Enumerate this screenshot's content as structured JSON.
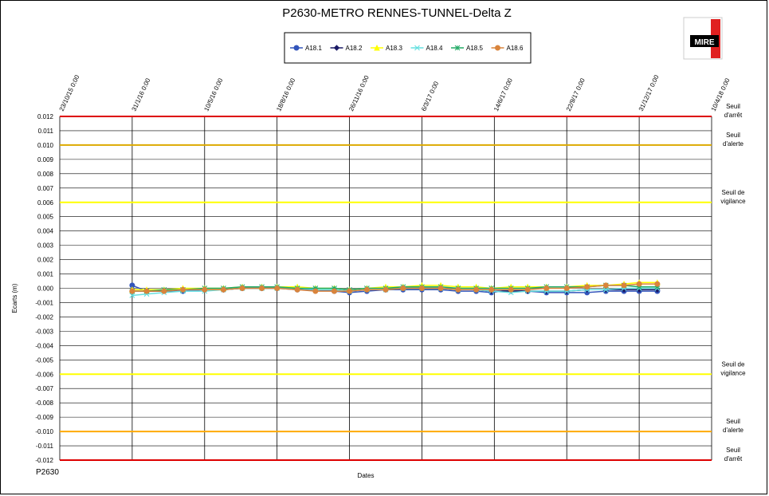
{
  "reference": "P2630",
  "logo": {
    "text": "MIRE",
    "colors": {
      "red": "#e02020",
      "black": "#000000"
    }
  },
  "chart_data": {
    "type": "line",
    "title": "P2630-METRO RENNES-TUNNEL-Delta Z",
    "xlabel": "Dates",
    "ylabel": "Ecarts (m)",
    "ylim": [
      -0.012,
      0.012
    ],
    "xlim": [
      "2015-10-23",
      "2018-04-10"
    ],
    "x_tick_labels": [
      "23/10/15 0:00",
      "31/1/16 0:00",
      "10/5/16 0:00",
      "18/8/16 0:00",
      "26/11/16 0:00",
      "6/3/17 0:00",
      "14/6/17 0:00",
      "22/9/17 0:00",
      "31/12/17 0:00",
      "10/4/18 0:00"
    ],
    "y_tick_labels": [
      "0.012",
      "0.011",
      "0.010",
      "0.009",
      "0.008",
      "0.007",
      "0.006",
      "0.005",
      "0.004",
      "0.003",
      "0.002",
      "0.001",
      "0.000",
      "-0.001",
      "-0.002",
      "-0.003",
      "-0.004",
      "-0.005",
      "-0.006",
      "-0.007",
      "-0.008",
      "-0.009",
      "-0.010",
      "-0.011",
      "-0.012"
    ],
    "grid": true,
    "legend_position": "top-center",
    "thresholds": [
      {
        "value": 0.012,
        "color": "#dd0000",
        "label_lines": [
          "Seuil",
          "d'arrêt"
        ]
      },
      {
        "value": 0.01,
        "color": "#ddaa00",
        "label_lines": [
          "Seuil",
          "d'alerte"
        ]
      },
      {
        "value": 0.006,
        "color": "#ffff00",
        "label_lines": [
          "Seuil de",
          "vigilance"
        ]
      },
      {
        "value": -0.006,
        "color": "#ffff00",
        "label_lines": [
          "Seuil de",
          "vigilance"
        ]
      },
      {
        "value": -0.01,
        "color": "#ffaa00",
        "label_lines": [
          "Seuil",
          "d'alerte"
        ]
      },
      {
        "value": -0.012,
        "color": "#dd0000",
        "label_lines": [
          "Seuil",
          "d'arrêt"
        ]
      }
    ],
    "series": [
      {
        "name": "A18.1",
        "color": "#3355bb",
        "marker": "circle",
        "x": [
          "2016-01-31",
          "2016-02-20",
          "2016-03-15",
          "2016-04-10",
          "2016-05-10",
          "2016-06-05",
          "2016-07-01",
          "2016-07-28",
          "2016-08-18",
          "2016-09-15",
          "2016-10-10",
          "2016-11-05",
          "2016-11-26",
          "2016-12-20",
          "2017-01-15",
          "2017-02-08",
          "2017-03-06",
          "2017-04-01",
          "2017-04-25",
          "2017-05-20",
          "2017-06-10",
          "2017-07-07",
          "2017-07-30",
          "2017-08-25",
          "2017-09-22",
          "2017-10-20",
          "2017-11-15",
          "2017-12-10",
          "2017-12-31",
          "2018-01-25"
        ],
        "y": [
          0.0002,
          -0.0002,
          -0.0002,
          -0.0002,
          -0.0001,
          -0.0001,
          0.0,
          0.0,
          0.0,
          -0.0001,
          -0.0001,
          -0.0002,
          -0.0003,
          -0.0002,
          -0.0001,
          -0.0001,
          -0.0001,
          -0.0001,
          -0.0002,
          -0.0002,
          -0.0003,
          -0.0001,
          -0.0002,
          -0.0003,
          -0.0003,
          -0.0003,
          -0.0002,
          -0.0002,
          -0.0002,
          -0.0002
        ]
      },
      {
        "name": "A18.2",
        "color": "#1a1a66",
        "marker": "diamond",
        "x": [
          "2016-01-31",
          "2016-02-20",
          "2016-03-15",
          "2016-04-10",
          "2016-05-10",
          "2016-06-05",
          "2016-07-01",
          "2016-07-28",
          "2016-08-18",
          "2016-09-15",
          "2016-10-10",
          "2016-11-05",
          "2016-11-26",
          "2016-12-20",
          "2017-01-15",
          "2017-02-08",
          "2017-03-06",
          "2017-04-01",
          "2017-04-25",
          "2017-05-20",
          "2017-06-10",
          "2017-07-07",
          "2017-07-30",
          "2017-08-25",
          "2017-09-22",
          "2017-10-20",
          "2017-11-15",
          "2017-12-10",
          "2017-12-31",
          "2018-01-25"
        ],
        "y": [
          -0.0002,
          -0.0002,
          -0.0002,
          -0.0001,
          -0.0001,
          -0.0001,
          0.0,
          0.0,
          0.0,
          0.0,
          -0.0001,
          -0.0001,
          -0.0002,
          -0.0001,
          -0.0001,
          0.0,
          0.0,
          0.0,
          -0.0001,
          -0.0001,
          -0.0002,
          -0.0002,
          -0.0002,
          -0.0002,
          -0.0002,
          -0.0001,
          -0.0001,
          -0.0001,
          -0.0001,
          -0.0001
        ]
      },
      {
        "name": "A18.3",
        "color": "#ffff00",
        "marker": "triangle",
        "x": [
          "2016-01-31",
          "2016-02-20",
          "2016-03-15",
          "2016-04-10",
          "2016-05-10",
          "2016-06-05",
          "2016-07-01",
          "2016-07-28",
          "2016-08-18",
          "2016-09-15",
          "2016-10-10",
          "2016-11-05",
          "2016-11-26",
          "2016-12-20",
          "2017-01-15",
          "2017-02-08",
          "2017-03-06",
          "2017-04-01",
          "2017-04-25",
          "2017-05-20",
          "2017-06-10",
          "2017-07-07",
          "2017-07-30",
          "2017-08-25",
          "2017-09-22",
          "2017-10-20",
          "2017-11-15",
          "2017-12-10",
          "2017-12-31",
          "2018-01-25"
        ],
        "y": [
          -0.0001,
          -0.0001,
          -0.0001,
          0.0,
          0.0,
          0.0,
          0.0001,
          0.0001,
          0.0001,
          0.0001,
          0.0,
          0.0,
          -0.0001,
          0.0,
          0.0001,
          0.0001,
          0.0002,
          0.0002,
          0.0001,
          0.0001,
          0.0,
          0.0001,
          0.0001,
          0.0001,
          0.0001,
          0.0002,
          0.0002,
          0.0003,
          0.0004,
          0.0004
        ]
      },
      {
        "name": "A18.4",
        "color": "#66e0e0",
        "marker": "x",
        "x": [
          "2016-01-31",
          "2016-02-20",
          "2016-03-15",
          "2016-04-10",
          "2016-05-10",
          "2016-06-05",
          "2016-07-01",
          "2016-07-28",
          "2016-08-18",
          "2016-09-15",
          "2016-10-10",
          "2016-11-05",
          "2016-11-26",
          "2016-12-20",
          "2017-01-15",
          "2017-02-08",
          "2017-03-06",
          "2017-04-01",
          "2017-04-25",
          "2017-05-20",
          "2017-06-10",
          "2017-07-07",
          "2017-07-30",
          "2017-08-25",
          "2017-09-22",
          "2017-10-20",
          "2017-11-15",
          "2017-12-10",
          "2017-12-31",
          "2018-01-25"
        ],
        "y": [
          -0.0005,
          -0.0004,
          -0.0003,
          -0.0002,
          -0.0002,
          -0.0001,
          0.0,
          0.0,
          0.0,
          0.0,
          -0.0001,
          -0.0001,
          -0.0002,
          -0.0001,
          -0.0001,
          0.0,
          0.0,
          0.0,
          -0.0001,
          -0.0001,
          -0.0002,
          -0.0003,
          -0.0002,
          -0.0002,
          -0.0002,
          -0.0001,
          -0.0001,
          0.0,
          0.0,
          0.0
        ]
      },
      {
        "name": "A18.5",
        "color": "#22aa66",
        "marker": "star",
        "x": [
          "2016-01-31",
          "2016-02-20",
          "2016-03-15",
          "2016-04-10",
          "2016-05-10",
          "2016-06-05",
          "2016-07-01",
          "2016-07-28",
          "2016-08-18",
          "2016-09-15",
          "2016-10-10",
          "2016-11-05",
          "2016-11-26",
          "2016-12-20",
          "2017-01-15",
          "2017-02-08",
          "2017-03-06",
          "2017-04-01",
          "2017-04-25",
          "2017-05-20",
          "2017-06-10",
          "2017-07-07",
          "2017-07-30",
          "2017-08-25",
          "2017-09-22",
          "2017-10-20",
          "2017-11-15",
          "2017-12-10",
          "2017-12-31",
          "2018-01-25"
        ],
        "y": [
          -0.0002,
          -0.0002,
          -0.0001,
          -0.0001,
          0.0,
          0.0,
          0.0001,
          0.0001,
          0.0001,
          0.0,
          0.0,
          0.0,
          -0.0001,
          0.0,
          0.0,
          0.0001,
          0.0001,
          0.0001,
          0.0,
          0.0,
          0.0,
          0.0,
          0.0,
          0.0001,
          0.0001,
          0.0001,
          0.0002,
          0.0002,
          0.0001,
          0.0001
        ]
      },
      {
        "name": "A18.6",
        "color": "#d9843c",
        "marker": "circle",
        "x": [
          "2016-01-31",
          "2016-02-20",
          "2016-03-15",
          "2016-04-10",
          "2016-05-10",
          "2016-06-05",
          "2016-07-01",
          "2016-07-28",
          "2016-08-18",
          "2016-09-15",
          "2016-10-10",
          "2016-11-05",
          "2016-11-26",
          "2016-12-20",
          "2017-01-15",
          "2017-02-08",
          "2017-03-06",
          "2017-04-01",
          "2017-04-25",
          "2017-05-20",
          "2017-06-10",
          "2017-07-07",
          "2017-07-30",
          "2017-08-25",
          "2017-09-22",
          "2017-10-20",
          "2017-11-15",
          "2017-12-10",
          "2017-12-31",
          "2018-01-25"
        ],
        "y": [
          -0.0002,
          -0.0002,
          -0.0002,
          -0.0001,
          -0.0001,
          -0.0001,
          0.0,
          0.0,
          0.0,
          -0.0001,
          -0.0002,
          -0.0002,
          -0.0002,
          -0.0001,
          -0.0001,
          0.0,
          0.0,
          0.0,
          -0.0001,
          -0.0001,
          -0.0001,
          -0.0001,
          -0.0001,
          0.0,
          0.0,
          0.0001,
          0.0002,
          0.0002,
          0.0003,
          0.0003
        ]
      }
    ]
  }
}
